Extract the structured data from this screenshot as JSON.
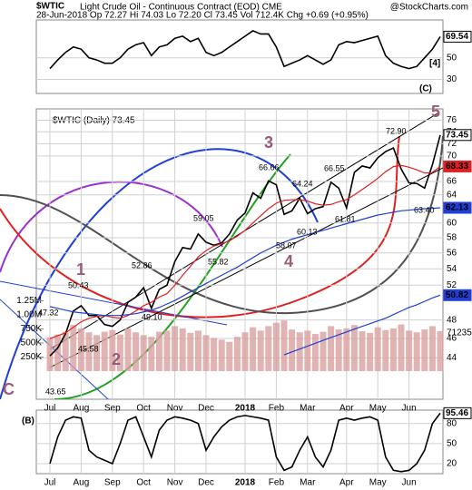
{
  "chart_data": [
    {
      "type": "line",
      "symbol": "$WTIC",
      "title": "Light Crude Oil - Continuous Contract (EOD) CME",
      "subtitle": "28-Jun-2018   Op 72.27  Hi 74.03  Lo 72.20  Cl 73.45  Vol 712.4K  Chg +0.69 (+0.95%)",
      "credit": "@StockCharts.com",
      "ylim": [
        17,
        85
      ],
      "yticks": [
        30,
        50
      ],
      "grid": true,
      "series": [
        {
          "color": "#000000",
          "values": [
            40,
            48,
            55,
            60,
            58,
            50,
            48,
            45,
            45,
            50,
            58,
            62,
            64,
            52,
            60,
            62,
            68,
            70,
            65,
            68,
            55,
            52,
            55,
            60,
            65,
            70,
            75,
            72,
            72,
            60,
            42,
            45,
            48,
            52,
            48,
            44,
            48,
            62,
            65,
            64,
            66,
            68,
            70,
            52,
            45,
            42,
            40,
            42,
            50,
            58,
            69.54
          ]
        }
      ],
      "annotations": [
        {
          "text": "[4]",
          "color": "#1f3fd6"
        },
        {
          "text": "(C)",
          "color": "#000000"
        }
      ]
    },
    {
      "type": "line",
      "log": true,
      "legend": "$WTIC (Daily) 73.45",
      "categories": [
        "Jul",
        null,
        null,
        null,
        "Aug",
        null,
        null,
        null,
        "Sep",
        null,
        null,
        null,
        "Oct",
        null,
        null,
        null,
        "Nov",
        null,
        null,
        null,
        "Dec",
        null,
        null,
        null,
        null,
        "2018",
        null,
        null,
        null,
        "Feb",
        null,
        null,
        null,
        "Mar",
        null,
        null,
        null,
        null,
        "Apr",
        null,
        null,
        null,
        "May",
        null,
        null,
        null,
        "Jun",
        null,
        null,
        null,
        null
      ],
      "ylim": [
        40,
        78
      ],
      "yticks": [
        44,
        46,
        48,
        52,
        54,
        56,
        58,
        60,
        64,
        66,
        70,
        72,
        74,
        76
      ],
      "grid": true,
      "series": [
        {
          "color": "#000000",
          "values": [
            44.2,
            45.0,
            46.5,
            49.0,
            49.6,
            48.5,
            48.5,
            47.5,
            47.3,
            48.0,
            50.0,
            50.6,
            51.7,
            49.3,
            51.5,
            52.0,
            54.9,
            56.7,
            56.5,
            58.5,
            57.4,
            57.0,
            57.3,
            58.5,
            60.4,
            61.4,
            64.3,
            63.5,
            66.1,
            65.5,
            61.2,
            61.7,
            63.5,
            61.3,
            62.0,
            62.3,
            65.9,
            65.0,
            62.1,
            67.4,
            68.4,
            68.1,
            69.7,
            70.7,
            71.3,
            67.9,
            65.8,
            65.7,
            65.0,
            68.6,
            73.45
          ]
        },
        {
          "color": "#e02020",
          "values": [
            46.0,
            46.3,
            46.6,
            47.2,
            47.8,
            48.2,
            48.4,
            48.5,
            48.3,
            48.2,
            48.5,
            49.0,
            49.6,
            50.0,
            50.6,
            51.0,
            52.0,
            53.2,
            54.3,
            55.5,
            56.3,
            56.9,
            57.2,
            57.6,
            58.2,
            59.0,
            60.0,
            61.0,
            62.0,
            62.8,
            63.2,
            63.3,
            63.3,
            63.1,
            62.7,
            62.5,
            62.6,
            63.0,
            63.3,
            64.0,
            64.8,
            65.6,
            66.5,
            67.5,
            68.3,
            68.5,
            68.2,
            67.8,
            67.3,
            67.4,
            68.33
          ]
        },
        {
          "color": "#1f3fd6",
          "values": [
            49.5,
            49.3,
            49.1,
            48.9,
            48.8,
            48.7,
            48.6,
            48.5,
            48.5,
            48.5,
            48.6,
            48.7,
            48.9,
            49.1,
            49.4,
            49.8,
            50.2,
            50.7,
            51.2,
            51.7,
            52.2,
            52.7,
            53.2,
            53.7,
            54.2,
            54.8,
            55.4,
            56.0,
            56.5,
            57.0,
            57.4,
            57.8,
            58.1,
            58.4,
            58.7,
            59.0,
            59.3,
            59.6,
            59.9,
            60.2,
            60.5,
            60.8,
            61.1,
            61.3,
            61.5,
            61.7,
            61.8,
            61.9,
            62.0,
            62.05,
            62.13
          ]
        },
        {
          "color": "#1f3fd6",
          "values": [
            null,
            null,
            null,
            null,
            null,
            null,
            null,
            null,
            null,
            null,
            null,
            null,
            null,
            null,
            null,
            null,
            null,
            null,
            null,
            null,
            null,
            null,
            null,
            null,
            null,
            null,
            null,
            null,
            null,
            null,
            44.3,
            44.6,
            44.9,
            45.2,
            45.5,
            45.8,
            46.1,
            46.4,
            46.7,
            47.0,
            47.3,
            47.6,
            47.9,
            48.2,
            48.6,
            49.0,
            49.4,
            49.7,
            50.1,
            50.5,
            50.82
          ]
        }
      ],
      "volume": {
        "color": "#d9a0a0",
        "ylim": [
          0,
          1500000
        ],
        "yticks": [
          {
            "value": 250000,
            "label": "250K"
          },
          {
            "value": 500000,
            "label": "500K"
          },
          {
            "value": 750000,
            "label": "750K"
          },
          {
            "value": 1000000,
            "label": "1.00M"
          },
          {
            "value": 1250000,
            "label": "1.25M"
          }
        ],
        "values": [
          600000,
          650000,
          700000,
          820000,
          760000,
          690000,
          640000,
          700000,
          730000,
          650000,
          760000,
          690000,
          640000,
          610000,
          700000,
          720000,
          800000,
          760000,
          680000,
          720000,
          640000,
          590000,
          560000,
          520000,
          610000,
          690000,
          780000,
          720000,
          800000,
          860000,
          900000,
          740000,
          690000,
          720000,
          660000,
          700000,
          800000,
          740000,
          760000,
          820000,
          710000,
          680000,
          780000,
          730000,
          760000,
          830000,
          720000,
          690000,
          740000,
          800000,
          712400
        ],
        "annotation": "71235"
      },
      "annotations": [
        {
          "text": "72.90"
        },
        {
          "text": "66.66"
        },
        {
          "text": "66.55"
        },
        {
          "text": "64.24"
        },
        {
          "text": "59.05"
        },
        {
          "text": "60.13"
        },
        {
          "text": "61.81"
        },
        {
          "text": "58.07"
        },
        {
          "text": "55.82"
        },
        {
          "text": "52.86"
        },
        {
          "text": "50.43"
        },
        {
          "text": "49.10"
        },
        {
          "text": "47.32"
        },
        {
          "text": "45.58"
        },
        {
          "text": "43.65"
        },
        {
          "text": "63.40"
        },
        {
          "text": "1"
        },
        {
          "text": "2"
        },
        {
          "text": "3"
        },
        {
          "text": "4"
        },
        {
          "text": "5"
        },
        {
          "text": "C"
        },
        {
          "text": "(B)"
        }
      ]
    },
    {
      "type": "line",
      "categories": [
        "Jul",
        null,
        null,
        null,
        "Aug",
        null,
        null,
        null,
        "Sep",
        null,
        null,
        null,
        "Oct",
        null,
        null,
        null,
        "Nov",
        null,
        null,
        null,
        "Dec",
        null,
        null,
        null,
        null,
        "2018",
        null,
        null,
        null,
        "Feb",
        null,
        null,
        null,
        "Mar",
        null,
        null,
        null,
        null,
        "Apr",
        null,
        null,
        null,
        "May",
        null,
        null,
        null,
        "Jun",
        null,
        null,
        null,
        null
      ],
      "ylim": [
        5,
        100
      ],
      "yticks": [
        20,
        50,
        80
      ],
      "grid": true,
      "series": [
        {
          "color": "#000000",
          "values": [
            20,
            60,
            85,
            90,
            88,
            40,
            30,
            25,
            20,
            50,
            85,
            90,
            60,
            30,
            70,
            85,
            90,
            88,
            85,
            80,
            40,
            60,
            75,
            85,
            90,
            92,
            90,
            88,
            85,
            30,
            10,
            15,
            40,
            60,
            30,
            15,
            40,
            85,
            88,
            85,
            88,
            90,
            85,
            30,
            10,
            8,
            10,
            20,
            40,
            80,
            95.46
          ]
        }
      ]
    }
  ]
}
